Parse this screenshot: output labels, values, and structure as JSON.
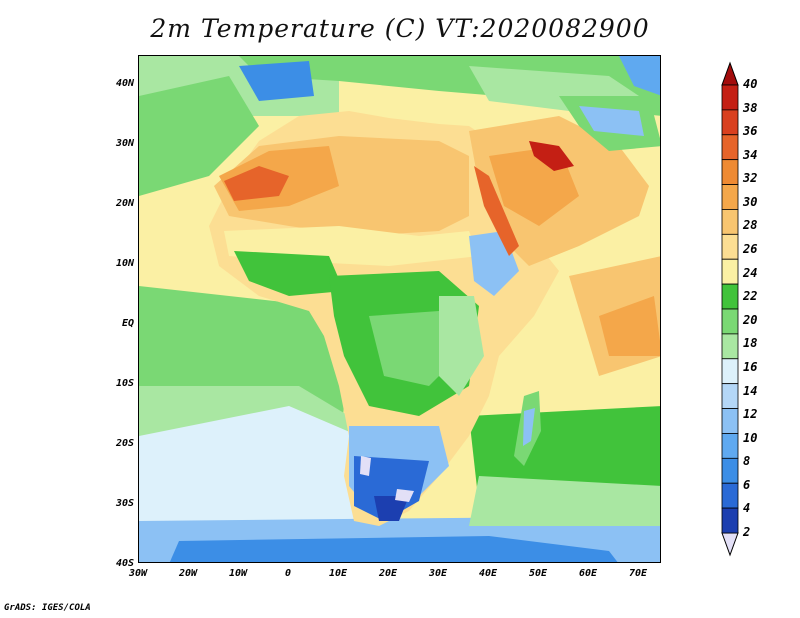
{
  "title": "2m Temperature (C) VT:2020082900",
  "credit": "GrADS: IGES/COLA",
  "lat_ticks": [
    "40N",
    "30N",
    "20N",
    "10N",
    "EQ",
    "10S",
    "20S",
    "30S",
    "40S"
  ],
  "lon_ticks": [
    "30W",
    "20W",
    "10W",
    "0",
    "10E",
    "20E",
    "30E",
    "40E",
    "50E",
    "60E",
    "70E"
  ],
  "colorbar": {
    "levels": [
      "2",
      "4",
      "6",
      "8",
      "10",
      "12",
      "14",
      "16",
      "18",
      "20",
      "22",
      "24",
      "26",
      "28",
      "30",
      "32",
      "34",
      "36",
      "38",
      "40"
    ],
    "colors": [
      "#0a1e7a",
      "#1c3fb0",
      "#2a6ad6",
      "#3c8ee6",
      "#5fa9f0",
      "#8cc1f4",
      "#b4d7f7",
      "#ddf1fb",
      "#a9e7a2",
      "#7ad874",
      "#41c33b",
      "#fbf0a4",
      "#fcde93",
      "#f8c570",
      "#f4a74a",
      "#ee8a33",
      "#e6642a",
      "#d9401f",
      "#c41f14",
      "#a30c0c"
    ],
    "under_color": "#e3e0f7",
    "over_color": "#a30c0c"
  },
  "map_colors": {
    "ocean_cool": "#7ad874",
    "ocean_temperate": "#a9e7a2",
    "ocean_cold": "#ddf1fb",
    "ocean_very_cold": "#8cc1f4",
    "ocean_polar": "#3c8ee6",
    "ocean_warm": "#fcde93",
    "ocean_tropical": "#fbf0a4",
    "sahara": "#f8c570",
    "sahara_hot": "#f4a74a",
    "sahara_hottest": "#e6642a",
    "sahel": "#fbf0a4",
    "forest": "#41c33b",
    "highlands": "#8cc1f4",
    "south_africa": "#2a6ad6",
    "gulf": "#d9401f",
    "europe": "#3c8ee6"
  }
}
